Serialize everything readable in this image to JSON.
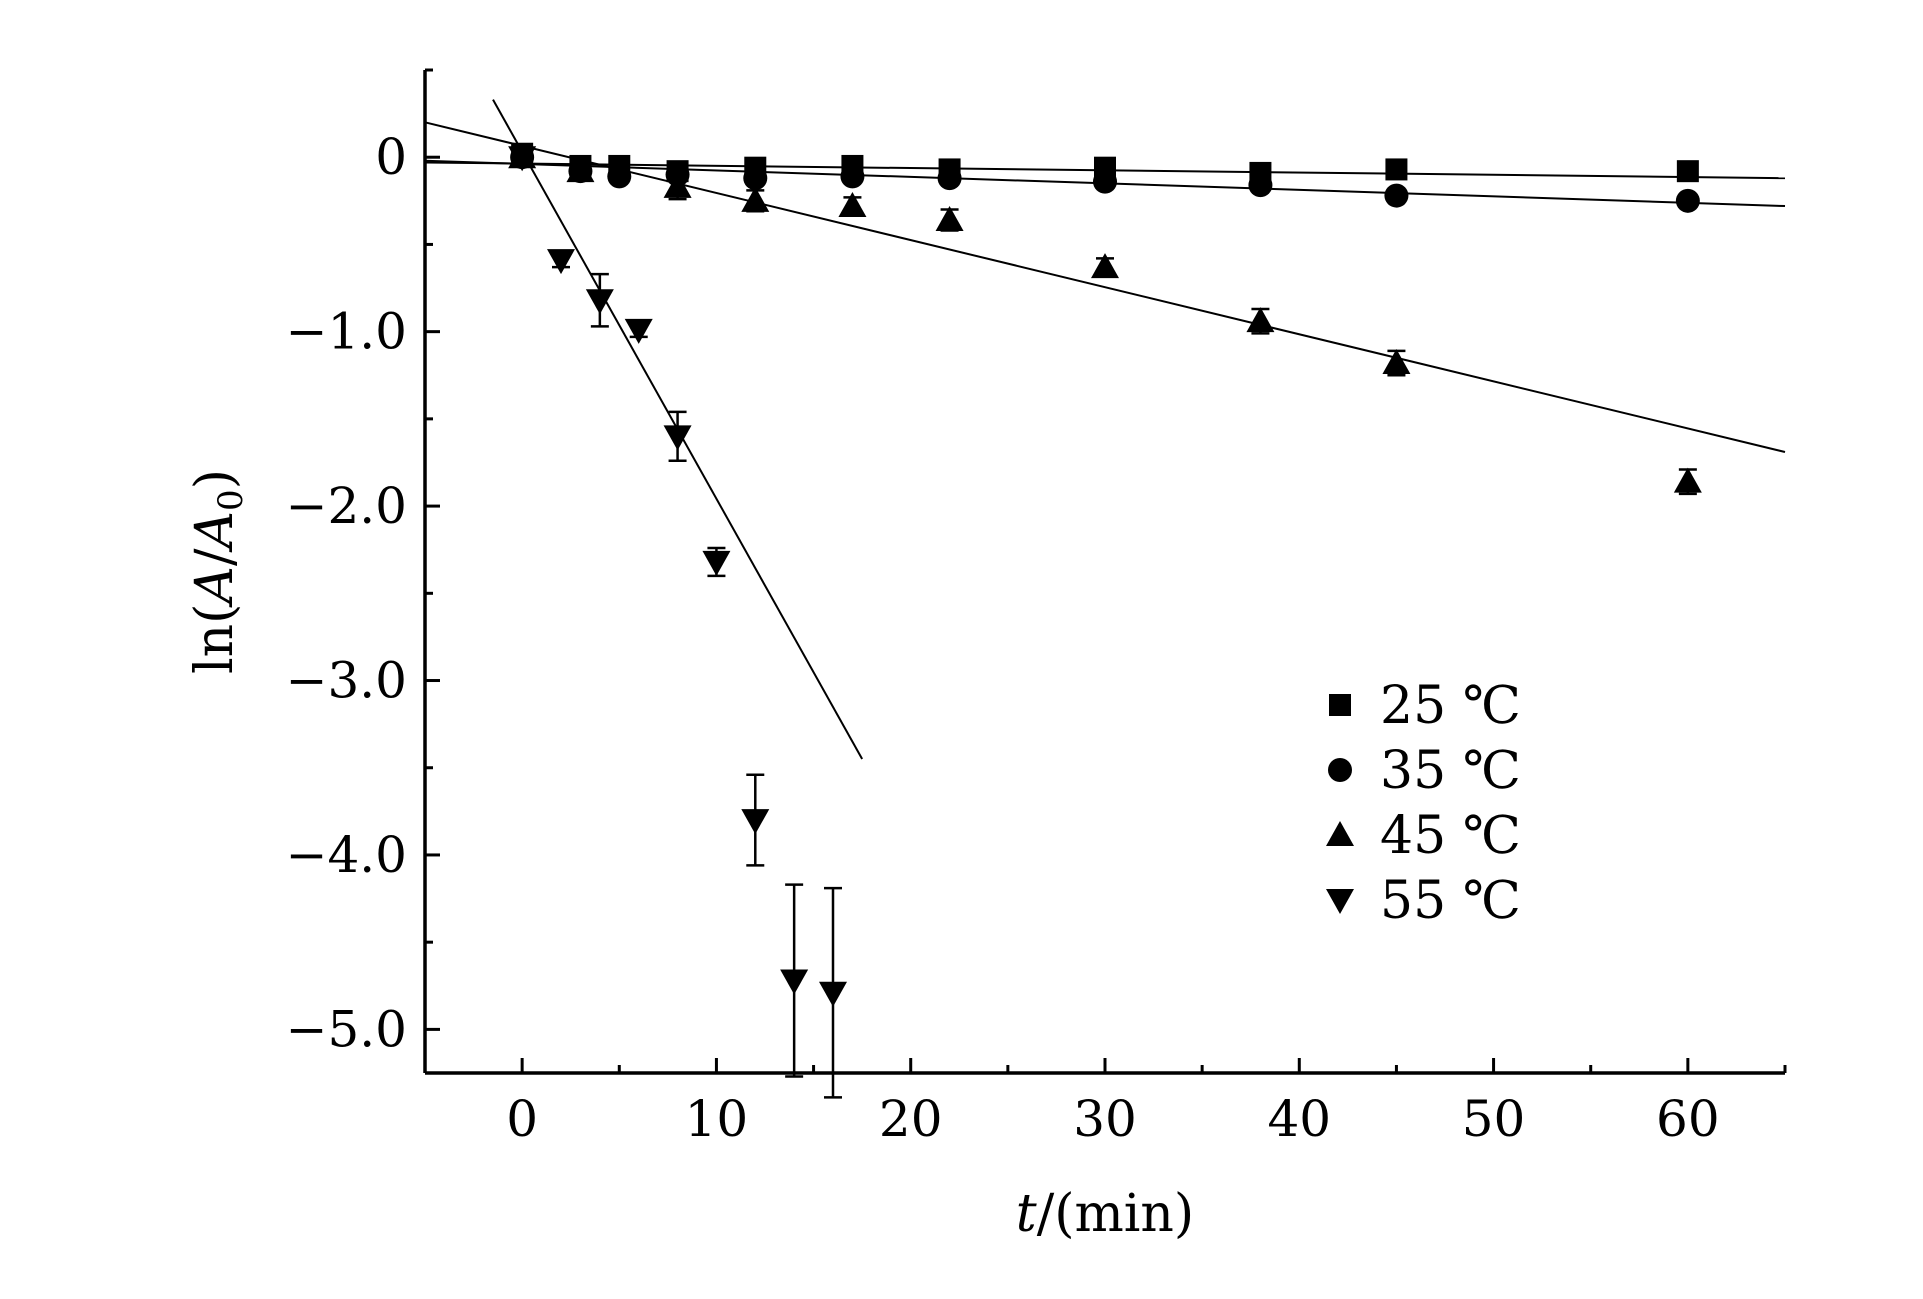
{
  "chart_data": {
    "type": "scatter",
    "title": "",
    "xlabel": {
      "italic": "t",
      "rest": "/(min)"
    },
    "ylabel": {
      "prefix": "ln(",
      "num": "A",
      "slash": "/",
      "den": "A",
      "sub": "0",
      "suffix": ")"
    },
    "xlim": [
      -5,
      65
    ],
    "ylim": [
      -5.25,
      0.5
    ],
    "xticks": [
      0,
      10,
      20,
      30,
      40,
      50,
      60
    ],
    "xtick_labels": [
      "0",
      "10",
      "20",
      "30",
      "40",
      "50",
      "60"
    ],
    "yticks": [
      0,
      -1,
      -2,
      -3,
      -4,
      -5
    ],
    "ytick_labels": [
      "0",
      "−1.0",
      "−2.0",
      "−3.0",
      "−4.0",
      "−5.0"
    ],
    "grid": false,
    "legend_position": "lower-right",
    "series": [
      {
        "name": "25 ℃",
        "marker": "square",
        "x": [
          0,
          3,
          5,
          8,
          12,
          17,
          22,
          30,
          38,
          45,
          60
        ],
        "y": [
          0.02,
          -0.05,
          -0.05,
          -0.08,
          -0.06,
          -0.05,
          -0.07,
          -0.06,
          -0.09,
          -0.07,
          -0.08
        ],
        "err": [
          0.02,
          0.02,
          0.02,
          0.02,
          0.02,
          0.02,
          0.02,
          0.02,
          0.02,
          0.02,
          0.02
        ],
        "fit": {
          "x": [
            -5,
            65
          ],
          "y": [
            -0.03,
            -0.12
          ]
        }
      },
      {
        "name": "35 ℃",
        "marker": "circle",
        "x": [
          0,
          3,
          5,
          8,
          12,
          17,
          22,
          30,
          38,
          45,
          60
        ],
        "y": [
          0.0,
          -0.08,
          -0.11,
          -0.1,
          -0.12,
          -0.11,
          -0.12,
          -0.14,
          -0.16,
          -0.22,
          -0.25
        ],
        "err": [
          0.02,
          0.02,
          0.02,
          0.02,
          0.02,
          0.02,
          0.02,
          0.02,
          0.02,
          0.02,
          0.02
        ],
        "fit": {
          "x": [
            -5,
            65
          ],
          "y": [
            -0.02,
            -0.28
          ]
        }
      },
      {
        "name": "45 ℃",
        "marker": "triangle-up",
        "x": [
          0,
          3,
          8,
          12,
          17,
          22,
          30,
          38,
          45,
          60
        ],
        "y": [
          0.0,
          -0.08,
          -0.17,
          -0.25,
          -0.28,
          -0.36,
          -0.63,
          -0.94,
          -1.18,
          -1.86
        ],
        "err": [
          0.03,
          0.05,
          0.07,
          0.06,
          0.05,
          0.06,
          0.05,
          0.07,
          0.07,
          0.07
        ],
        "fit": {
          "x": [
            -5,
            65
          ],
          "y": [
            0.2,
            -1.69
          ]
        }
      },
      {
        "name": "55 ℃",
        "marker": "triangle-down",
        "x": [
          0,
          2,
          4,
          6,
          8,
          10,
          12,
          14,
          16
        ],
        "y": [
          0.0,
          -0.59,
          -0.82,
          -0.99,
          -1.6,
          -2.32,
          -3.8,
          -4.72,
          -4.79
        ],
        "err": [
          0.03,
          0.04,
          0.15,
          0.04,
          0.14,
          0.08,
          0.26,
          0.55,
          0.6
        ],
        "fit": {
          "x": [
            -1.5,
            17.5
          ],
          "y": [
            0.33,
            -3.45
          ]
        }
      }
    ]
  }
}
